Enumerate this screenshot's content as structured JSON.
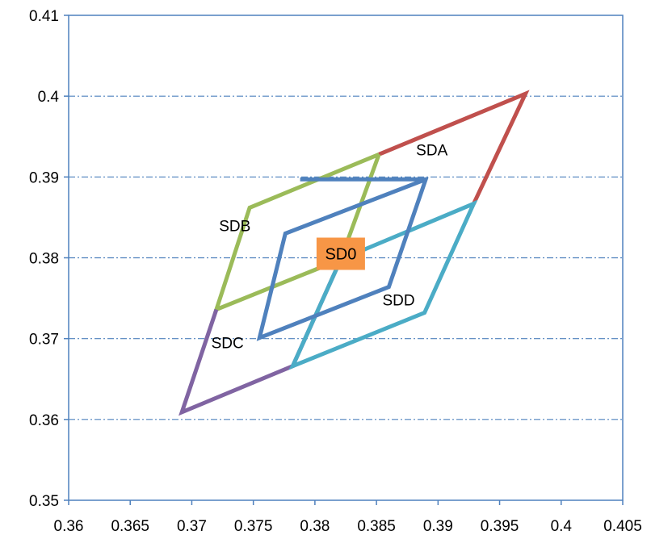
{
  "chart_data": {
    "type": "line",
    "title": "",
    "xlabel": "",
    "ylabel": "",
    "xlim": [
      0.36,
      0.405
    ],
    "ylim": [
      0.35,
      0.41
    ],
    "x_ticks": [
      "0.36",
      "0.365",
      "0.37",
      "0.375",
      "0.38",
      "0.385",
      "0.39",
      "0.395",
      "0.4",
      "0.405"
    ],
    "y_ticks": [
      "0.35",
      "0.36",
      "0.37",
      "0.38",
      "0.39",
      "0.4",
      "0.41"
    ],
    "grid": "horizontal dash-dot",
    "series": [
      {
        "color": "#c0504d",
        "points": [
          [
            0.3852,
            0.3928
          ],
          [
            0.3971,
            0.4003
          ],
          [
            0.3929,
            0.3867
          ]
        ]
      },
      {
        "color": "#9bbb59",
        "points": [
          [
            0.3852,
            0.3928
          ],
          [
            0.3747,
            0.3862
          ],
          [
            0.372,
            0.3736
          ],
          [
            0.3821,
            0.3798
          ],
          [
            0.3852,
            0.3928
          ]
        ]
      },
      {
        "color": "#8064a2",
        "points": [
          [
            0.372,
            0.3736
          ],
          [
            0.3692,
            0.3609
          ],
          [
            0.3782,
            0.3666
          ],
          [
            0.3821,
            0.3798
          ]
        ]
      },
      {
        "color": "#4bacc6",
        "points": [
          [
            0.3821,
            0.3798
          ],
          [
            0.3929,
            0.3867
          ],
          [
            0.3889,
            0.3732
          ],
          [
            0.3782,
            0.3666
          ],
          [
            0.3821,
            0.3798
          ]
        ]
      },
      {
        "color": "#4f81bd",
        "points": [
          [
            0.3789,
            0.3897
          ],
          [
            0.3788,
            0.3897
          ],
          [
            0.389,
            0.3897
          ],
          [
            0.386,
            0.3764
          ],
          [
            0.3755,
            0.3701
          ],
          [
            0.3776,
            0.383
          ],
          [
            0.389,
            0.3897
          ]
        ]
      }
    ],
    "annotations": [
      {
        "text": "SDA",
        "x": 0.3895,
        "y": 0.3934
      },
      {
        "text": "SDB",
        "x": 0.3735,
        "y": 0.384
      },
      {
        "text": "SDC",
        "x": 0.3729,
        "y": 0.3695
      },
      {
        "text": "SDD",
        "x": 0.3868,
        "y": 0.3748
      },
      {
        "text": "SD0",
        "x": 0.3821,
        "y": 0.3805,
        "box_color": "#f79646"
      }
    ]
  }
}
